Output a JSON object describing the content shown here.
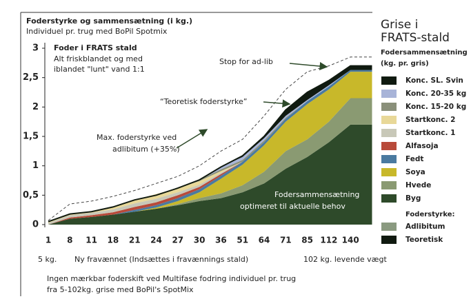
{
  "chart_data": {
    "type": "stacked_area",
    "title": "Foderstyrke og sammensætning (i kg.)",
    "subtitle": "Individuel pr. trug med BoPil Spotmix",
    "legend_title": [
      "Grise i",
      "FRATS-stald"
    ],
    "legend_subtitle": [
      "Fodersammensætning",
      "(kg. pr. gris)"
    ],
    "legend_lines_title": "Foderstyrke:",
    "inset": [
      "Foder i FRATS stald",
      "Alt friskblandet og med",
      "iblandet \"lunt\" vand 1:1"
    ],
    "annotations": [
      "Stop for ad-lib",
      "“Teoretisk foderstyrke”",
      "Max. foderstyrke ved",
      "adlibitum (+35%)"
    ],
    "area_note": [
      "Fodersammensætning",
      "optimeret til aktuelle behov"
    ],
    "x_notes": [
      "5 kg.",
      "Ny fravænnet (Indsættes i fravænnings stald)",
      "102 kg. levende vægt"
    ],
    "footnote": [
      "Ingen mærkbar foderskift ved Multifase fodring individuel pr. trug",
      "fra 5-102kg. grise med BoPil's SpotMix"
    ],
    "categories": [
      "1",
      "8",
      "11",
      "18",
      "21",
      "24",
      "27",
      "30",
      "36",
      "51",
      "64",
      "71",
      "85",
      "112",
      "140",
      null
    ],
    "ylim": [
      0,
      3
    ],
    "yticks": [
      0,
      {
        "value": 0.5,
        "label": "0,5"
      },
      1,
      {
        "value": 1.5,
        "label": "1,5"
      },
      2,
      {
        "value": 2.5,
        "label": "2,5"
      },
      3
    ],
    "series": [
      {
        "name": "Byg",
        "color": "#2e4a2a",
        "values": [
          0,
          0.1,
          0.13,
          0.17,
          0.22,
          0.27,
          0.33,
          0.4,
          0.45,
          0.55,
          0.7,
          0.95,
          1.15,
          1.4,
          1.7,
          1.7
        ]
      },
      {
        "name": "Hvede",
        "color": "#8a9a72",
        "values": [
          0,
          0,
          0,
          0,
          0,
          0,
          0.02,
          0.05,
          0.08,
          0.12,
          0.2,
          0.3,
          0.3,
          0.35,
          0.45,
          0.45
        ]
      },
      {
        "name": "Soya",
        "color": "#c8b82a",
        "values": [
          0,
          0,
          0,
          0,
          0,
          0.02,
          0.05,
          0.1,
          0.25,
          0.35,
          0.45,
          0.5,
          0.6,
          0.55,
          0.45,
          0.45
        ]
      },
      {
        "name": "Fedt",
        "color": "#4a7aa0",
        "values": [
          0,
          0,
          0,
          0,
          0.03,
          0.04,
          0.05,
          0.05,
          0.05,
          0.05,
          0.05,
          0.05,
          0.05,
          0.05,
          0.03,
          0.03
        ]
      },
      {
        "name": "Alfasoja",
        "color": "#b84a3a",
        "values": [
          0,
          0.02,
          0.03,
          0.04,
          0.05,
          0.05,
          0.05,
          0.04,
          0.03,
          0,
          0,
          0,
          0,
          0,
          0,
          0
        ]
      },
      {
        "name": "Startkonc. 1",
        "color": "#c8c8b8",
        "values": [
          0.03,
          0.04,
          0.04,
          0.05,
          0.06,
          0.06,
          0.05,
          0.04,
          0.02,
          0,
          0,
          0,
          0,
          0,
          0,
          0
        ]
      },
      {
        "name": "Startkonc. 2",
        "color": "#e8d898",
        "values": [
          0.02,
          0.02,
          0.02,
          0.04,
          0.06,
          0.08,
          0.07,
          0.06,
          0.03,
          0,
          0,
          0,
          0,
          0,
          0,
          0
        ]
      },
      {
        "name": "Konc. 15-20 kg",
        "color": "#8a907a",
        "values": [
          0,
          0,
          0,
          0,
          0,
          0,
          0,
          0.02,
          0.03,
          0.03,
          0.03,
          0.02,
          0,
          0,
          0,
          0
        ]
      },
      {
        "name": "Konc. 20-35 kg",
        "color": "#a8b4d8",
        "values": [
          0,
          0,
          0,
          0,
          0,
          0,
          0,
          0,
          0.04,
          0.05,
          0.04,
          0.03,
          0.02,
          0.02,
          0,
          0
        ]
      },
      {
        "name": "Konc. SL. Svin",
        "color": "#101a10",
        "values": [
          0,
          0,
          0,
          0,
          0,
          0,
          0,
          0,
          0,
          0.02,
          0.03,
          0.1,
          0.13,
          0.08,
          0.07,
          0.07
        ]
      }
    ],
    "lines": [
      {
        "name": "Adlibitum",
        "color": "#8a9a80",
        "stroke": "#444",
        "dashed": true,
        "values": [
          0.07,
          0.35,
          0.4,
          0.48,
          0.58,
          0.7,
          0.82,
          1.0,
          1.25,
          1.45,
          1.85,
          2.3,
          2.6,
          2.7,
          2.85,
          2.85
        ]
      },
      {
        "name": "Teoretisk",
        "color": "#101a10",
        "stroke": "#101a10",
        "dashed": false,
        "values": [
          0.05,
          0.18,
          0.22,
          0.3,
          0.42,
          0.5,
          0.62,
          0.76,
          0.98,
          1.17,
          1.5,
          1.95,
          2.25,
          2.45,
          2.7,
          2.7
        ]
      }
    ]
  }
}
